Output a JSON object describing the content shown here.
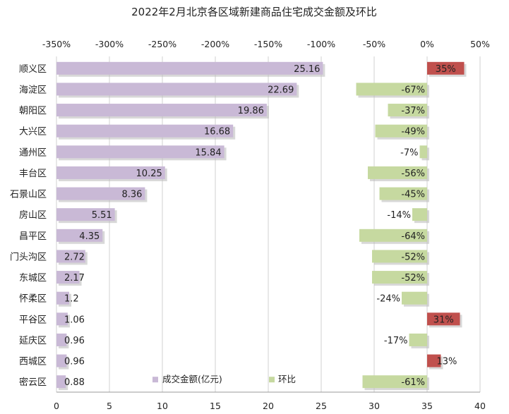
{
  "chart_data": {
    "type": "bar",
    "orientation": "horizontal",
    "title": "2022年2月北京各区域新建商品住宅成交金额及环比",
    "categories": [
      "顺义区",
      "海淀区",
      "朝阳区",
      "大兴区",
      "通州区",
      "丰台区",
      "石景山区",
      "房山区",
      "昌平区",
      "门头沟区",
      "东城区",
      "怀柔区",
      "平谷区",
      "延庆区",
      "西城区",
      "密云区"
    ],
    "series": [
      {
        "name": "成交金额(亿元)",
        "axis": "bottom",
        "color": "#c9b9d6",
        "values": [
          25.16,
          22.69,
          19.86,
          16.68,
          15.84,
          10.25,
          8.36,
          5.51,
          4.35,
          2.72,
          2.17,
          1.2,
          1.06,
          0.96,
          0.96,
          0.88
        ],
        "labels": [
          "25.16",
          "22.69",
          "19.86",
          "16.68",
          "15.84",
          "10.25",
          "8.36",
          "5.51",
          "4.35",
          "2.72",
          "2.17",
          "1.2",
          "1.06",
          "0.96",
          "0.96",
          "0.88"
        ]
      },
      {
        "name": "环比",
        "axis": "top",
        "color": "#c6d9a0",
        "negative_color": "#c6d9a0",
        "positive_color": "#c0504d",
        "values": [
          35,
          -67,
          -37,
          -49,
          -7,
          -56,
          -45,
          -14,
          -64,
          -52,
          -52,
          -24,
          31,
          -17,
          13,
          -61
        ],
        "labels": [
          "35%",
          "-67%",
          "-37%",
          "-49%",
          "-7%",
          "-56%",
          "-45%",
          "-14%",
          "-64%",
          "-52%",
          "-52%",
          "-24%",
          "31%",
          "-17%",
          "13%",
          "-61%"
        ]
      }
    ],
    "x_bottom": {
      "min": 0,
      "max": 40,
      "step": 5,
      "ticks": [
        "0",
        "5",
        "10",
        "15",
        "20",
        "25",
        "30",
        "35",
        "40"
      ]
    },
    "x_top": {
      "min": -350,
      "max": 50,
      "step": 50,
      "ticks": [
        "-350%",
        "-300%",
        "-250%",
        "-200%",
        "-150%",
        "-100%",
        "-50%",
        "0%",
        "50%"
      ]
    },
    "grid": true,
    "legend_position": "bottom-center"
  }
}
